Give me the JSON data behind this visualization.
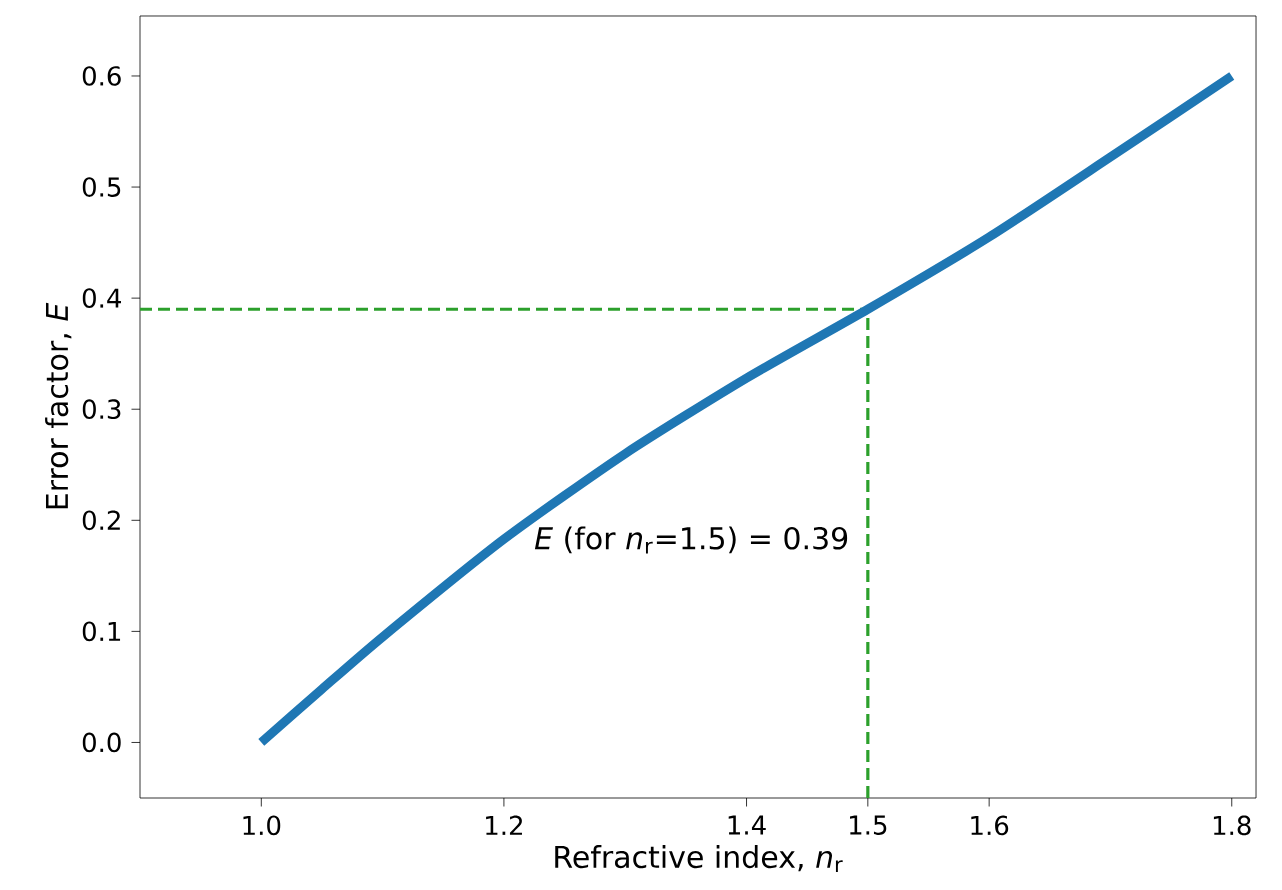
{
  "chart_data": {
    "type": "line",
    "xlabel": "Refractive index, *n*$_{r}$",
    "ylabel": "Error factor, *E*",
    "x": [
      1.0,
      1.05,
      1.1,
      1.2,
      1.3,
      1.4,
      1.5,
      1.6,
      1.7,
      1.8
    ],
    "series": [
      {
        "color": "#1f77b4",
        "values": [
          0.0,
          0.048,
          0.095,
          0.183,
          0.26,
          0.328,
          0.39,
          0.455,
          0.527,
          0.6
        ]
      }
    ],
    "xlim": [
      0.9,
      1.82
    ],
    "ylim": [
      -0.05,
      0.654
    ],
    "xticks": [
      {
        "value": 1,
        "label": "1.0"
      },
      1.2,
      1.4,
      1.5,
      1.6,
      1.8
    ],
    "yticks": [
      {
        "value": 0,
        "label": "0.0"
      },
      0.1,
      0.2,
      0.3,
      0.4,
      0.5,
      0.6
    ],
    "ref_lines": [
      {
        "axis": "x",
        "value": 1.5,
        "color": "#2ca02c",
        "line_style": "dashed"
      },
      {
        "axis": "y",
        "value": 0.39,
        "color": "#2ca02c",
        "line_style": "dashed"
      }
    ],
    "annotations": [
      "*E* (for *n*$_{r}$=1.5) = 0.39"
    ]
  }
}
